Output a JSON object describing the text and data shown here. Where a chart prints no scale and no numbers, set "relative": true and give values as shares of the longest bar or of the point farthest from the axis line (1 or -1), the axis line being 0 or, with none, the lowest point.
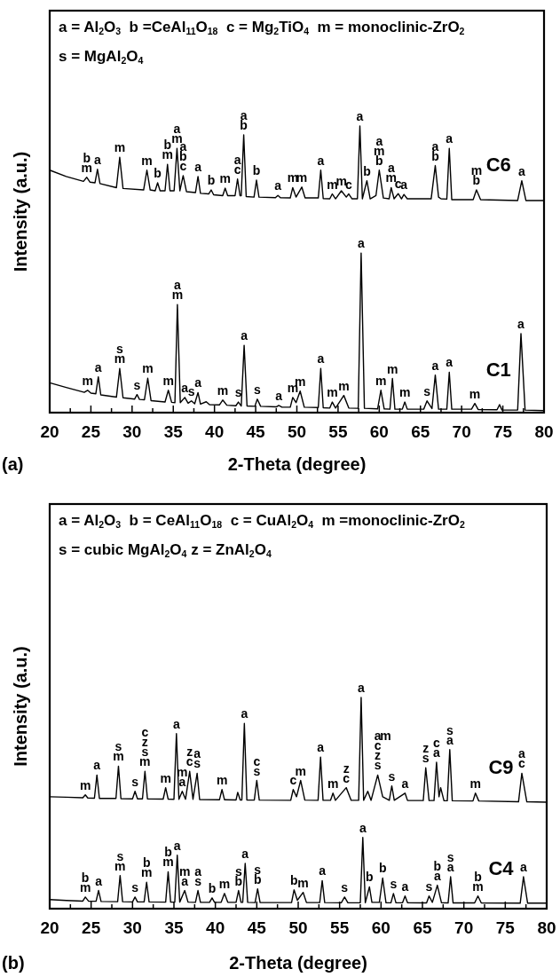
{
  "chart_data": [
    {
      "type": "line",
      "title": "(a)",
      "xlabel": "2-Theta (degree)",
      "ylabel": "Intensity (a.u.)",
      "relative": true,
      "xlim": [
        20,
        80
      ],
      "xticks": [
        20,
        {
          "value": 22.5,
          "label": null
        },
        25,
        {
          "value": 27.5,
          "label": null
        },
        30,
        {
          "value": 32.5,
          "label": null
        },
        35,
        {
          "value": 37.5,
          "label": null
        },
        40,
        {
          "value": 42.5,
          "label": null
        },
        45,
        {
          "value": 47.5,
          "label": null
        },
        50,
        {
          "value": 52.5,
          "label": null
        },
        55,
        {
          "value": 57.5,
          "label": null
        },
        60,
        {
          "value": 62.5,
          "label": null
        },
        65,
        {
          "value": 67.5,
          "label": null
        },
        70,
        {
          "value": 72.5,
          "label": null
        },
        75,
        {
          "value": 77.5,
          "label": null
        },
        80
      ],
      "series": [
        {
          "name": "C6",
          "color": "#000000",
          "x": [
            20,
            22,
            24.1,
            24.5,
            24.9,
            25.5,
            25.8,
            26.1,
            28.1,
            28.5,
            28.9,
            31.4,
            31.8,
            32.2,
            32.8,
            33.1,
            33.4,
            34.0,
            34.3,
            34.6,
            35.1,
            35.45,
            35.8,
            36.2,
            36.6,
            37.7,
            38.0,
            38.3,
            39.3,
            39.6,
            39.9,
            41.0,
            41.3,
            41.6,
            42.5,
            42.8,
            43.1,
            43.25,
            43.55,
            43.85,
            44.8,
            45.1,
            45.4,
            47.4,
            47.7,
            48.0,
            49.2,
            49.5,
            49.9,
            50.6,
            51.0,
            52.6,
            52.9,
            53.2,
            54.0,
            54.3,
            54.7,
            55.4,
            56.0,
            56.3,
            56.7,
            57.35,
            57.65,
            57.95,
            58.5,
            58.9,
            59.6,
            60.0,
            60.5,
            61.2,
            61.45,
            61.8,
            62.3,
            62.7,
            63.0,
            63.4,
            66.3,
            66.8,
            67.2,
            67.5,
            68.2,
            68.5,
            68.8,
            71.4,
            71.8,
            72.3,
            76.8,
            77.3,
            77.8,
            80
          ],
          "values": [
            0.846,
            0.824,
            0.807,
            0.821,
            0.804,
            0.802,
            0.849,
            0.799,
            0.785,
            0.891,
            0.782,
            0.777,
            0.846,
            0.777,
            0.774,
            0.802,
            0.774,
            0.774,
            0.866,
            0.774,
            0.774,
            0.922,
            0.774,
            0.827,
            0.771,
            0.768,
            0.824,
            0.765,
            0.763,
            0.777,
            0.76,
            0.757,
            0.783,
            0.757,
            0.757,
            0.815,
            0.757,
            0.757,
            0.969,
            0.754,
            0.752,
            0.811,
            0.752,
            0.75,
            0.758,
            0.75,
            0.749,
            0.785,
            0.752,
            0.787,
            0.749,
            0.749,
            0.846,
            0.747,
            0.746,
            0.763,
            0.746,
            0.774,
            0.752,
            0.763,
            0.746,
            0.746,
            1,
            0.746,
            0.809,
            0.746,
            0.757,
            0.846,
            0.749,
            0.746,
            0.785,
            0.746,
            0.764,
            0.746,
            0.761,
            0.746,
            0.746,
            0.862,
            0.752,
            0.746,
            0.745,
            0.922,
            0.743,
            0.743,
            0.777,
            0.743,
            0.74,
            0.809,
            0.74,
            0.74
          ]
        },
        {
          "name": "C1",
          "color": "#000000",
          "x": [
            20,
            22,
            24.2,
            24.6,
            25.0,
            25.6,
            25.9,
            26.2,
            28.1,
            28.5,
            28.9,
            30.3,
            30.6,
            30.9,
            31.5,
            31.9,
            32.3,
            34.0,
            34.4,
            34.8,
            35.2,
            35.5,
            35.85,
            36.4,
            36.8,
            37.2,
            37.6,
            38.0,
            38.3,
            39.0,
            39.4,
            40.6,
            41.0,
            41.5,
            42.6,
            42.9,
            43.25,
            43.6,
            43.95,
            44.9,
            45.2,
            45.6,
            47.5,
            47.8,
            48.2,
            49.2,
            49.5,
            49.9,
            50.4,
            50.9,
            52.6,
            52.9,
            53.2,
            54.0,
            54.3,
            54.7,
            55.7,
            56.3,
            57.45,
            57.8,
            58.2,
            59.8,
            60.2,
            60.6,
            61.3,
            61.6,
            61.9,
            62.8,
            63.1,
            63.4,
            65.4,
            65.8,
            66.4,
            66.8,
            67.2,
            68.2,
            68.5,
            68.8,
            71.2,
            71.6,
            72.0,
            74.3,
            74.6,
            74.9,
            76.8,
            77.2,
            77.7,
            80
          ],
          "values": [
            0.104,
            0.088,
            0.071,
            0.078,
            0.068,
            0.066,
            0.125,
            0.062,
            0.054,
            0.154,
            0.052,
            0.047,
            0.063,
            0.046,
            0.045,
            0.12,
            0.042,
            0.037,
            0.078,
            0.036,
            0.035,
            0.377,
            0.035,
            0.053,
            0.033,
            0.041,
            0.031,
            0.07,
            0.03,
            0.038,
            0.028,
            0.027,
            0.044,
            0.026,
            0.024,
            0.037,
            0.023,
            0.235,
            0.023,
            0.022,
            0.047,
            0.022,
            0.02,
            0.025,
            0.019,
            0.019,
            0.053,
            0.035,
            0.075,
            0.019,
            0.018,
            0.154,
            0.017,
            0.016,
            0.037,
            0.016,
            0.06,
            0.016,
            0.015,
            0.557,
            0.015,
            0.013,
            0.078,
            0.013,
            0.012,
            0.119,
            0.012,
            0.012,
            0.037,
            0.012,
            0.012,
            0.041,
            0.014,
            0.131,
            0.012,
            0.012,
            0.141,
            0.012,
            0.012,
            0.032,
            0.011,
            0.01,
            0.028,
            0.009,
            0.009,
            0.276,
            0.009,
            0.007
          ]
        }
      ],
      "annotations": [
        "a = Al$_{2}$O$_{3}$  b =CeAl$_{11}$O$_{18}$  c = Mg$_{2}$TiO$_{4}$  m = monoclinic-ZrO$_{2}$",
        "s = MgAl$_{2}$O$_{4}$",
        {
          "text": "b",
          "x": 24.5,
          "y": 0.821
        },
        {
          "text": "m",
          "x": 24.5,
          "y": 0.821
        },
        {
          "text": "a",
          "x": 25.8,
          "y": 0.849
        },
        {
          "text": "m",
          "x": 28.5,
          "y": 0.891
        },
        {
          "text": "m",
          "x": 31.8,
          "y": 0.846
        },
        {
          "text": "b",
          "x": 33.1,
          "y": 0.802
        },
        {
          "text": "b",
          "x": 34.3,
          "y": 0.866
        },
        {
          "text": "m",
          "x": 34.3,
          "y": 0.866
        },
        {
          "text": "a",
          "x": 35.45,
          "y": 0.922
        },
        {
          "text": "m",
          "x": 35.45,
          "y": 0.922
        },
        {
          "text": "a",
          "x": 36.2,
          "y": 0.827
        },
        {
          "text": "b",
          "x": 36.2,
          "y": 0.827
        },
        {
          "text": "c",
          "x": 36.2,
          "y": 0.827
        },
        {
          "text": "a",
          "x": 38.0,
          "y": 0.824
        },
        {
          "text": "b",
          "x": 39.6,
          "y": 0.777
        },
        {
          "text": "m",
          "x": 41.3,
          "y": 0.783
        },
        {
          "text": "a",
          "x": 42.8,
          "y": 0.815
        },
        {
          "text": "c",
          "x": 42.8,
          "y": 0.815
        },
        {
          "text": "a",
          "x": 43.55,
          "y": 0.969
        },
        {
          "text": "b",
          "x": 43.55,
          "y": 0.969
        },
        {
          "text": "b",
          "x": 45.1,
          "y": 0.811
        },
        {
          "text": "a",
          "x": 47.7,
          "y": 0.758
        },
        {
          "text": "m",
          "x": 49.5,
          "y": 0.785
        },
        {
          "text": "m",
          "x": 50.6,
          "y": 0.787
        },
        {
          "text": "a",
          "x": 52.9,
          "y": 0.846
        },
        {
          "text": "m",
          "x": 54.3,
          "y": 0.763
        },
        {
          "text": "m",
          "x": 55.4,
          "y": 0.774
        },
        {
          "text": "c",
          "x": 56.3,
          "y": 0.763
        },
        {
          "text": "a",
          "x": 57.65,
          "y": 1
        },
        {
          "text": "b",
          "x": 58.5,
          "y": 0.809
        },
        {
          "text": "a",
          "x": 60.0,
          "y": 0.846
        },
        {
          "text": "m",
          "x": 60.0,
          "y": 0.846
        },
        {
          "text": "b",
          "x": 60.0,
          "y": 0.846
        },
        {
          "text": "a",
          "x": 61.45,
          "y": 0.785
        },
        {
          "text": "m",
          "x": 61.45,
          "y": 0.785
        },
        {
          "text": "c",
          "x": 62.3,
          "y": 0.764
        },
        {
          "text": "a",
          "x": 63.0,
          "y": 0.761
        },
        {
          "text": "a",
          "x": 66.8,
          "y": 0.862
        },
        {
          "text": "b",
          "x": 66.8,
          "y": 0.862
        },
        {
          "text": "a",
          "x": 68.5,
          "y": 0.922
        },
        {
          "text": "m",
          "x": 71.8,
          "y": 0.777
        },
        {
          "text": "b",
          "x": 71.8,
          "y": 0.777
        },
        {
          "text": "a",
          "x": 77.3,
          "y": 0.809
        },
        {
          "text": "m",
          "x": 24.6,
          "y": 0.078
        },
        {
          "text": "a",
          "x": 25.9,
          "y": 0.125
        },
        {
          "text": "s",
          "x": 28.5,
          "y": 0.154
        },
        {
          "text": "m",
          "x": 28.5,
          "y": 0.154
        },
        {
          "text": "s",
          "x": 30.6,
          "y": 0.063
        },
        {
          "text": "m",
          "x": 31.9,
          "y": 0.12
        },
        {
          "text": "m",
          "x": 34.4,
          "y": 0.078
        },
        {
          "text": "a",
          "x": 35.5,
          "y": 0.377
        },
        {
          "text": "m",
          "x": 35.5,
          "y": 0.377
        },
        {
          "text": "a",
          "x": 36.4,
          "y": 0.053
        },
        {
          "text": "s",
          "x": 37.2,
          "y": 0.041
        },
        {
          "text": "a",
          "x": 38.0,
          "y": 0.07
        },
        {
          "text": "m",
          "x": 41.0,
          "y": 0.044
        },
        {
          "text": "s",
          "x": 42.9,
          "y": 0.037
        },
        {
          "text": "a",
          "x": 43.6,
          "y": 0.235
        },
        {
          "text": "s",
          "x": 45.2,
          "y": 0.047
        },
        {
          "text": "a",
          "x": 47.8,
          "y": 0.025
        },
        {
          "text": "m",
          "x": 49.5,
          "y": 0.053
        },
        {
          "text": "m",
          "x": 50.4,
          "y": 0.075
        },
        {
          "text": "a",
          "x": 52.9,
          "y": 0.154
        },
        {
          "text": "m",
          "x": 54.3,
          "y": 0.037
        },
        {
          "text": "m",
          "x": 55.7,
          "y": 0.06
        },
        {
          "text": "a",
          "x": 57.8,
          "y": 0.557
        },
        {
          "text": "m",
          "x": 60.2,
          "y": 0.078
        },
        {
          "text": "m",
          "x": 61.6,
          "y": 0.119
        },
        {
          "text": "m",
          "x": 63.1,
          "y": 0.037
        },
        {
          "text": "s",
          "x": 65.8,
          "y": 0.041
        },
        {
          "text": "a",
          "x": 66.8,
          "y": 0.131
        },
        {
          "text": "a",
          "x": 68.5,
          "y": 0.141
        },
        {
          "text": "m",
          "x": 71.6,
          "y": 0.032
        },
        {
          "text": "a",
          "x": 77.2,
          "y": 0.276
        }
      ]
    },
    {
      "type": "line",
      "title": "(b)",
      "xlabel": "2-Theta (degree)",
      "ylabel": "Intensity (a.u.)",
      "relative": true,
      "xlim": [
        20,
        80
      ],
      "xticks": [
        20,
        {
          "value": 22.5,
          "label": null
        },
        25,
        {
          "value": 27.5,
          "label": null
        },
        30,
        {
          "value": 32.5,
          "label": null
        },
        35,
        {
          "value": 37.5,
          "label": null
        },
        40,
        {
          "value": 42.5,
          "label": null
        },
        45,
        {
          "value": 47.5,
          "label": null
        },
        50,
        {
          "value": 52.5,
          "label": null
        },
        55,
        {
          "value": 57.5,
          "label": null
        },
        60,
        {
          "value": 62.5,
          "label": null
        },
        65,
        {
          "value": 67.5,
          "label": null
        },
        70,
        {
          "value": 72.5,
          "label": null
        },
        75,
        {
          "value": 77.5,
          "label": null
        },
        80
      ],
      "series": [
        {
          "name": "C9",
          "color": "#000000",
          "x": [
            20,
            22,
            24.0,
            24.3,
            24.6,
            25.4,
            25.7,
            26.0,
            28.0,
            28.3,
            28.6,
            30.0,
            30.3,
            30.6,
            31.2,
            31.5,
            31.8,
            33.7,
            34.0,
            34.3,
            35.0,
            35.3,
            35.6,
            36.0,
            36.4,
            36.9,
            37.3,
            37.8,
            38.1,
            40.5,
            40.8,
            41.1,
            42.5,
            42.7,
            43.0,
            43.2,
            43.5,
            43.8,
            44.7,
            45.0,
            45.3,
            49.1,
            49.4,
            49.8,
            50.3,
            50.8,
            52.4,
            52.7,
            53.0,
            53.9,
            54.2,
            54.5,
            55.8,
            56.4,
            57.3,
            57.6,
            57.9,
            58.4,
            58.8,
            59.6,
            60.2,
            61.0,
            61.3,
            61.6,
            62.9,
            63.2,
            65.1,
            65.4,
            65.8,
            66.4,
            66.7,
            67.0,
            67.2,
            67.6,
            68.0,
            68.3,
            68.6,
            71.1,
            71.4,
            71.8,
            76.6,
            77.0,
            77.6,
            80
          ],
          "values": [
            0.53,
            0.528,
            0.525,
            0.539,
            0.524,
            0.523,
            0.633,
            0.522,
            0.522,
            0.675,
            0.521,
            0.52,
            0.556,
            0.52,
            0.52,
            0.65,
            0.52,
            0.519,
            0.573,
            0.519,
            0.518,
            0.829,
            0.518,
            0.556,
            0.518,
            0.65,
            0.518,
            0.641,
            0.517,
            0.516,
            0.564,
            0.516,
            0.515,
            0.551,
            0.515,
            0.515,
            0.877,
            0.515,
            0.514,
            0.607,
            0.514,
            0.513,
            0.564,
            0.53,
            0.607,
            0.514,
            0.513,
            0.718,
            0.513,
            0.513,
            0.547,
            0.513,
            0.573,
            0.513,
            0.513,
            1,
            0.513,
            0.556,
            0.513,
            0.633,
            0.53,
            0.513,
            0.581,
            0.513,
            0.547,
            0.512,
            0.512,
            0.667,
            0.512,
            0.512,
            0.693,
            0.53,
            0.573,
            0.511,
            0.511,
            0.753,
            0.511,
            0.51,
            0.547,
            0.51,
            0.506,
            0.641,
            0.506,
            0.504
          ]
        },
        {
          "name": "C4",
          "color": "#000000",
          "x": [
            20,
            22,
            24.0,
            24.3,
            24.7,
            25.6,
            25.9,
            26.2,
            28.2,
            28.5,
            28.8,
            30.0,
            30.3,
            30.6,
            31.4,
            31.7,
            32.0,
            34.0,
            34.3,
            34.6,
            35.1,
            35.4,
            35.7,
            36.3,
            36.7,
            37.6,
            37.9,
            38.2,
            39.3,
            39.6,
            39.9,
            40.7,
            41.1,
            41.5,
            42.5,
            42.8,
            43.1,
            43.3,
            43.6,
            43.9,
            44.8,
            45.1,
            45.4,
            49.2,
            49.5,
            49.9,
            50.6,
            51.0,
            52.6,
            52.9,
            53.2,
            55.2,
            55.6,
            56.0,
            57.5,
            57.8,
            58.1,
            58.6,
            58.9,
            59.8,
            60.2,
            60.6,
            61.2,
            61.5,
            61.8,
            62.6,
            62.9,
            63.2,
            65.5,
            65.8,
            66.2,
            66.8,
            67.3,
            68.1,
            68.4,
            68.7,
            71.3,
            71.7,
            72.1,
            76.8,
            77.2,
            77.7,
            80
          ],
          "values": [
            0.043,
            0.039,
            0.036,
            0.055,
            0.035,
            0.035,
            0.086,
            0.034,
            0.033,
            0.157,
            0.033,
            0.032,
            0.055,
            0.032,
            0.032,
            0.125,
            0.032,
            0.031,
            0.175,
            0.031,
            0.031,
            0.253,
            0.031,
            0.086,
            0.031,
            0.03,
            0.086,
            0.03,
            0.03,
            0.051,
            0.03,
            0.03,
            0.072,
            0.03,
            0.03,
            0.086,
            0.03,
            0.03,
            0.214,
            0.03,
            0.029,
            0.094,
            0.029,
            0.029,
            0.089,
            0.04,
            0.077,
            0.029,
            0.029,
            0.133,
            0.029,
            0.028,
            0.055,
            0.028,
            0.028,
            0.337,
            0.028,
            0.103,
            0.03,
            0.03,
            0.145,
            0.028,
            0.028,
            0.072,
            0.028,
            0.028,
            0.06,
            0.028,
            0.027,
            0.06,
            0.03,
            0.111,
            0.028,
            0.027,
            0.151,
            0.027,
            0.027,
            0.06,
            0.027,
            0.026,
            0.151,
            0.026,
            0.026
          ]
        }
      ],
      "annotations": [
        "a = Al$_{2}$O$_{3}$  b = CeAl$_{11}$O$_{18}$  c = CuAl$_{2}$O$_{4}$  m =monoclinic-ZrO$_{2}$",
        "s = cubic MgAl$_{2}$O$_{4}$ z = ZnAl$_{2}$O$_{4}$",
        {
          "text": "m",
          "x": 24.3,
          "y": 0.539
        },
        {
          "text": "a",
          "x": 25.7,
          "y": 0.633
        },
        {
          "text": "s",
          "x": 28.3,
          "y": 0.675
        },
        {
          "text": "m",
          "x": 28.3,
          "y": 0.675
        },
        {
          "text": "s",
          "x": 30.3,
          "y": 0.556
        },
        {
          "text": "c",
          "x": 31.5,
          "y": 0.65
        },
        {
          "text": "z",
          "x": 31.5,
          "y": 0.65
        },
        {
          "text": "s",
          "x": 31.5,
          "y": 0.65
        },
        {
          "text": "m",
          "x": 31.5,
          "y": 0.65
        },
        {
          "text": "m",
          "x": 34.0,
          "y": 0.573
        },
        {
          "text": "a",
          "x": 35.3,
          "y": 0.829
        },
        {
          "text": "m",
          "x": 36.0,
          "y": 0.556
        },
        {
          "text": "a",
          "x": 36.0,
          "y": 0.556
        },
        {
          "text": "z",
          "x": 36.9,
          "y": 0.65
        },
        {
          "text": "c",
          "x": 36.9,
          "y": 0.65
        },
        {
          "text": "a",
          "x": 37.8,
          "y": 0.641
        },
        {
          "text": "s",
          "x": 37.8,
          "y": 0.641
        },
        {
          "text": "m",
          "x": 40.8,
          "y": 0.564
        },
        {
          "text": "a",
          "x": 43.5,
          "y": 0.877
        },
        {
          "text": "c",
          "x": 45.0,
          "y": 0.607
        },
        {
          "text": "s",
          "x": 45.0,
          "y": 0.607
        },
        {
          "text": "c",
          "x": 49.4,
          "y": 0.564
        },
        {
          "text": "m",
          "x": 50.3,
          "y": 0.607
        },
        {
          "text": "a",
          "x": 52.7,
          "y": 0.718
        },
        {
          "text": "m",
          "x": 54.2,
          "y": 0.547
        },
        {
          "text": "z",
          "x": 55.8,
          "y": 0.573
        },
        {
          "text": "c",
          "x": 55.8,
          "y": 0.573
        },
        {
          "text": "a",
          "x": 57.6,
          "y": 1
        },
        {
          "text": "m",
          "x": 59.6,
          "y": 0.633
        },
        {
          "text": "a",
          "x": 59.6,
          "y": 0.633
        },
        {
          "text": "c",
          "x": 59.6,
          "y": 0.633
        },
        {
          "text": "z",
          "x": 59.6,
          "y": 0.633
        },
        {
          "text": "s",
          "x": 59.6,
          "y": 0.633
        },
        {
          "text": "s",
          "x": 61.3,
          "y": 0.581
        },
        {
          "text": "a",
          "x": 62.9,
          "y": 0.547
        },
        {
          "text": "z",
          "x": 65.4,
          "y": 0.667
        },
        {
          "text": "s",
          "x": 65.4,
          "y": 0.667
        },
        {
          "text": "c",
          "x": 66.7,
          "y": 0.693
        },
        {
          "text": "a",
          "x": 66.7,
          "y": 0.693
        },
        {
          "text": "s",
          "x": 68.3,
          "y": 0.753
        },
        {
          "text": "a",
          "x": 68.3,
          "y": 0.753
        },
        {
          "text": "m",
          "x": 71.4,
          "y": 0.547
        },
        {
          "text": "a",
          "x": 77.0,
          "y": 0.641
        },
        {
          "text": "c",
          "x": 77.0,
          "y": 0.641
        },
        {
          "text": "b",
          "x": 24.3,
          "y": 0.055
        },
        {
          "text": "m",
          "x": 24.3,
          "y": 0.055
        },
        {
          "text": "a",
          "x": 25.9,
          "y": 0.086
        },
        {
          "text": "s",
          "x": 28.5,
          "y": 0.157
        },
        {
          "text": "m",
          "x": 28.5,
          "y": 0.157
        },
        {
          "text": "s",
          "x": 30.3,
          "y": 0.055
        },
        {
          "text": "b",
          "x": 31.7,
          "y": 0.125
        },
        {
          "text": "m",
          "x": 31.7,
          "y": 0.125
        },
        {
          "text": "b",
          "x": 34.3,
          "y": 0.175
        },
        {
          "text": "m",
          "x": 34.3,
          "y": 0.175
        },
        {
          "text": "a",
          "x": 35.4,
          "y": 0.253
        },
        {
          "text": "m",
          "x": 36.3,
          "y": 0.086
        },
        {
          "text": "a",
          "x": 36.3,
          "y": 0.086
        },
        {
          "text": "a",
          "x": 37.9,
          "y": 0.086
        },
        {
          "text": "s",
          "x": 37.9,
          "y": 0.086
        },
        {
          "text": "b",
          "x": 39.6,
          "y": 0.051
        },
        {
          "text": "m",
          "x": 41.1,
          "y": 0.072
        },
        {
          "text": "s",
          "x": 42.8,
          "y": 0.086
        },
        {
          "text": "b",
          "x": 42.8,
          "y": 0.086
        },
        {
          "text": "a",
          "x": 43.6,
          "y": 0.214
        },
        {
          "text": "s",
          "x": 45.1,
          "y": 0.094
        },
        {
          "text": "b",
          "x": 45.1,
          "y": 0.094
        },
        {
          "text": "b",
          "x": 49.5,
          "y": 0.089
        },
        {
          "text": "m",
          "x": 50.6,
          "y": 0.077
        },
        {
          "text": "a",
          "x": 52.9,
          "y": 0.133
        },
        {
          "text": "s",
          "x": 55.6,
          "y": 0.055
        },
        {
          "text": "a",
          "x": 57.8,
          "y": 0.337
        },
        {
          "text": "b",
          "x": 58.6,
          "y": 0.103
        },
        {
          "text": "b",
          "x": 60.2,
          "y": 0.145
        },
        {
          "text": "s",
          "x": 61.5,
          "y": 0.072
        },
        {
          "text": "a",
          "x": 62.9,
          "y": 0.06
        },
        {
          "text": "s",
          "x": 65.8,
          "y": 0.06
        },
        {
          "text": "b",
          "x": 66.8,
          "y": 0.111
        },
        {
          "text": "a",
          "x": 66.8,
          "y": 0.111
        },
        {
          "text": "s",
          "x": 68.4,
          "y": 0.151
        },
        {
          "text": "a",
          "x": 68.4,
          "y": 0.151
        },
        {
          "text": "b",
          "x": 71.7,
          "y": 0.06
        },
        {
          "text": "m",
          "x": 71.7,
          "y": 0.06
        },
        {
          "text": "a",
          "x": 77.2,
          "y": 0.151
        }
      ]
    }
  ]
}
